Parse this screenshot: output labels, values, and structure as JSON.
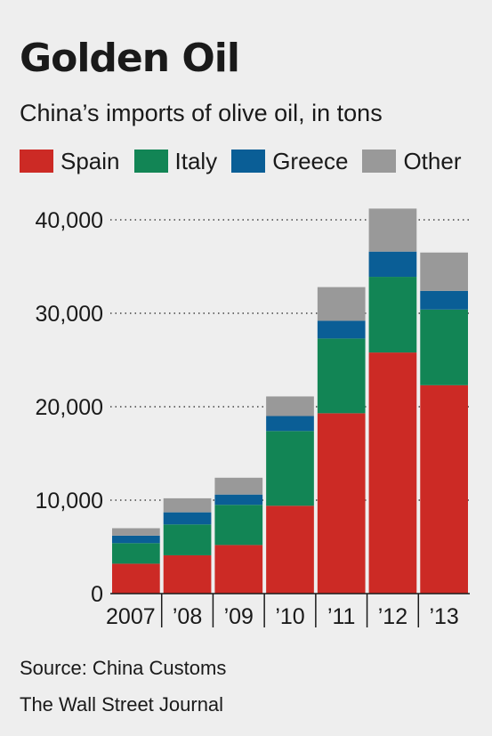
{
  "header": {
    "title": "Golden Oil",
    "subtitle": "China’s imports of olive oil, in tons"
  },
  "legend": [
    {
      "label": "Spain",
      "color": "#cc2a25"
    },
    {
      "label": "Italy",
      "color": "#128555"
    },
    {
      "label": "Greece",
      "color": "#0a5e96"
    },
    {
      "label": "Other",
      "color": "#999999"
    }
  ],
  "footer": {
    "source": "Source: China Customs",
    "credit": "The Wall Street Journal"
  },
  "chart_data": {
    "type": "bar",
    "stacked": true,
    "title": "Golden Oil",
    "subtitle": "China’s imports of olive oil, in tons",
    "categories": [
      "2007",
      "’08",
      "’09",
      "’10",
      "’11",
      "’12",
      "’13"
    ],
    "series": [
      {
        "name": "Spain",
        "color": "#cc2a25",
        "values": [
          3200,
          4100,
          5200,
          9400,
          19300,
          25800,
          22300
        ]
      },
      {
        "name": "Italy",
        "color": "#128555",
        "values": [
          2200,
          3300,
          4300,
          8000,
          8000,
          8100,
          8100
        ]
      },
      {
        "name": "Greece",
        "color": "#0a5e96",
        "values": [
          800,
          1300,
          1100,
          1600,
          1900,
          2700,
          2000
        ]
      },
      {
        "name": "Other",
        "color": "#999999",
        "values": [
          800,
          1500,
          1800,
          2100,
          3600,
          4600,
          4100
        ]
      }
    ],
    "ylim": [
      0,
      40000
    ],
    "yticks": [
      0,
      10000,
      20000,
      30000,
      40000
    ],
    "ytick_labels": [
      "0",
      "10,000",
      "20,000",
      "30,000",
      "40,000"
    ],
    "xlabel": "",
    "ylabel": "",
    "grid": true,
    "legend_position": "top"
  }
}
